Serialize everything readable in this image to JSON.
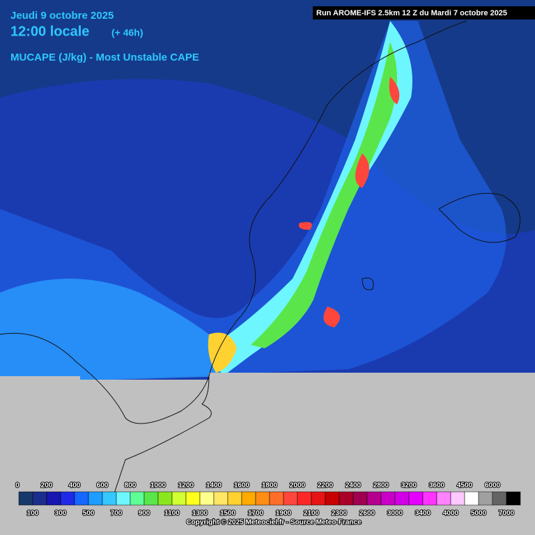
{
  "header": {
    "date": "Jeudi 9 octobre 2025",
    "time": "12:00 locale",
    "lead": "(+ 46h)",
    "parameter": "MUCAPE (J/kg) - Most Unstable CAPE",
    "run": "Run AROME-IFS 2.5km 12 Z du Mardi 7 octobre 2025"
  },
  "legend": {
    "labels": [
      0,
      100,
      200,
      300,
      400,
      500,
      600,
      700,
      800,
      900,
      1000,
      1100,
      1200,
      1300,
      1400,
      1500,
      1600,
      1700,
      1800,
      1900,
      2000,
      2100,
      2200,
      2300,
      2400,
      2600,
      2800,
      3000,
      3200,
      3400,
      3600,
      4000,
      4500,
      5000,
      6000,
      7000
    ],
    "colors": [
      "#17386b",
      "#1a2d8c",
      "#1616b0",
      "#1e2ae6",
      "#1567ff",
      "#1e9cff",
      "#35c8ff",
      "#6ef6ff",
      "#5dff95",
      "#5ae64a",
      "#8ce61e",
      "#d2ff32",
      "#ffff1e",
      "#ffff8c",
      "#ffe664",
      "#ffd232",
      "#ffaa00",
      "#ff8c14",
      "#ff6e28",
      "#ff463c",
      "#ff2828",
      "#e61414",
      "#c80000",
      "#aa0028",
      "#a00050",
      "#b4008c",
      "#c800c8",
      "#d200e6",
      "#e600ff",
      "#ff32ff",
      "#ff82ff",
      "#ffc8ff",
      "#ffffff",
      "#a0a0a0",
      "#646464",
      "#000000"
    ]
  },
  "footer": {
    "copyright": "Copyright © 2025 Meteociel.fr - Source Meteo-France"
  }
}
